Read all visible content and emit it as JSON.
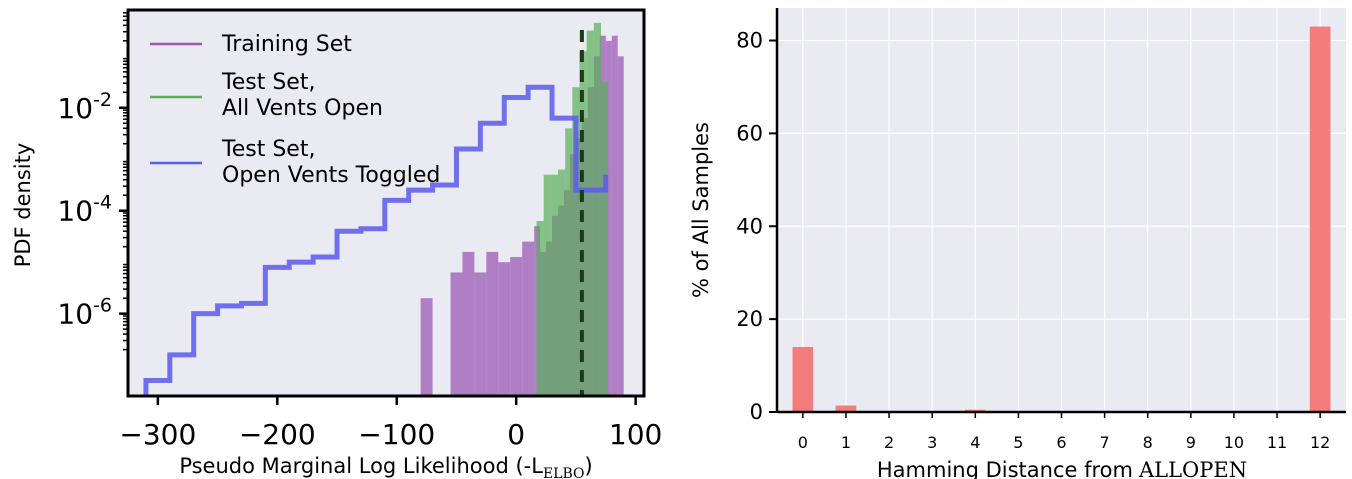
{
  "chart_data": [
    {
      "type": "histogram",
      "xlabel": "Pseudo Marginal Log Likelihood (-L",
      "xlabel_sub": "ELBO",
      "xlabel_close": ")",
      "ylabel": "PDF density",
      "yscale": "log",
      "xlim": [
        -325,
        107
      ],
      "ylim_log10": [
        -7.6,
        -0.1
      ],
      "xticks": [
        -300,
        -200,
        -100,
        0,
        100
      ],
      "xtick_labels": [
        "−300",
        "−200",
        "−100",
        "0",
        "100"
      ],
      "yticks": [
        {
          "exp": -2,
          "base": "10",
          "sup": "-2"
        },
        {
          "exp": -4,
          "base": "10",
          "sup": "-4"
        },
        {
          "exp": -6,
          "base": "10",
          "sup": "-6"
        }
      ],
      "legend_position": "upper-left",
      "dashed_line_x": 55,
      "series": [
        {
          "name": "Training Set",
          "style": "bar",
          "color": "#9b59b6",
          "bars": [
            {
              "x0": -80,
              "x1": -70,
              "log10": -5.7
            },
            {
              "x0": -55,
              "x1": -45,
              "log10": -5.2
            },
            {
              "x0": -45,
              "x1": -35,
              "log10": -4.8
            },
            {
              "x0": -35,
              "x1": -25,
              "log10": -5.2
            },
            {
              "x0": -25,
              "x1": -15,
              "log10": -4.8
            },
            {
              "x0": -15,
              "x1": -5,
              "log10": -5.0
            },
            {
              "x0": -5,
              "x1": 5,
              "log10": -4.9
            },
            {
              "x0": 5,
              "x1": 15,
              "log10": -4.6
            },
            {
              "x0": 15,
              "x1": 20,
              "log10": -4.3
            },
            {
              "x0": 20,
              "x1": 25,
              "log10": -4.8
            },
            {
              "x0": 25,
              "x1": 30,
              "log10": -4.6
            },
            {
              "x0": 30,
              "x1": 35,
              "log10": -4.1
            },
            {
              "x0": 35,
              "x1": 40,
              "log10": -3.9
            },
            {
              "x0": 40,
              "x1": 45,
              "log10": -3.6
            },
            {
              "x0": 45,
              "x1": 50,
              "log10": -2.9
            },
            {
              "x0": 50,
              "x1": 55,
              "log10": -2.6
            },
            {
              "x0": 55,
              "x1": 60,
              "log10": -2.2
            },
            {
              "x0": 60,
              "x1": 65,
              "log10": -1.6
            },
            {
              "x0": 65,
              "x1": 70,
              "log10": -1.0
            },
            {
              "x0": 70,
              "x1": 75,
              "log10": -0.6
            },
            {
              "x0": 75,
              "x1": 80,
              "log10": -0.7
            },
            {
              "x0": 80,
              "x1": 85,
              "log10": -0.6
            },
            {
              "x0": 85,
              "x1": 90,
              "log10": -1.0
            }
          ]
        },
        {
          "name": "Test Set,\nAll Vents Open",
          "style": "bar",
          "color": "#5aae5a",
          "bars": [
            {
              "x0": 17,
              "x1": 23,
              "log10": -4.2
            },
            {
              "x0": 23,
              "x1": 29,
              "log10": -3.3
            },
            {
              "x0": 29,
              "x1": 35,
              "log10": -3.3
            },
            {
              "x0": 35,
              "x1": 41,
              "log10": -3.2
            },
            {
              "x0": 41,
              "x1": 47,
              "log10": -2.4
            },
            {
              "x0": 47,
              "x1": 53,
              "log10": -1.6
            },
            {
              "x0": 53,
              "x1": 59,
              "log10": -0.9
            },
            {
              "x0": 59,
              "x1": 65,
              "log10": -0.5
            },
            {
              "x0": 65,
              "x1": 71,
              "log10": -0.35
            },
            {
              "x0": 71,
              "x1": 77,
              "log10": -1.5
            }
          ]
        },
        {
          "name": "Test Set,\nOpen Vents Toggled",
          "style": "step",
          "color": "#5b5bef",
          "edges": [
            -310,
            -290,
            -270,
            -250,
            -230,
            -210,
            -190,
            -170,
            -150,
            -130,
            -110,
            -90,
            -70,
            -50,
            -30,
            -10,
            10,
            30,
            50,
            75
          ],
          "log10": [
            -7.3,
            -6.8,
            -6.0,
            -5.85,
            -5.8,
            -5.1,
            -5.0,
            -4.9,
            -4.4,
            -4.35,
            -3.8,
            -3.6,
            -3.5,
            -2.8,
            -2.3,
            -1.8,
            -1.6,
            -2.2,
            -3.6,
            -3.3
          ]
        }
      ]
    },
    {
      "type": "bar",
      "xlabel": "Hamming Distance from",
      "xlabel_term": "ALLOPEN",
      "ylabel": "% of All Samples",
      "ylim": [
        0,
        87
      ],
      "xlim": [
        -0.6,
        12.6
      ],
      "yticks": [
        0,
        20,
        40,
        60,
        80
      ],
      "categories": [
        "0",
        "1",
        "2",
        "3",
        "4",
        "5",
        "6",
        "7",
        "8",
        "9",
        "10",
        "11",
        "12"
      ],
      "values": [
        14,
        1.4,
        0,
        0,
        0.5,
        0,
        0,
        0,
        0,
        0,
        0,
        0,
        83
      ],
      "color": "#f47c7c",
      "background": "#eaeaf2",
      "grid": true
    }
  ]
}
